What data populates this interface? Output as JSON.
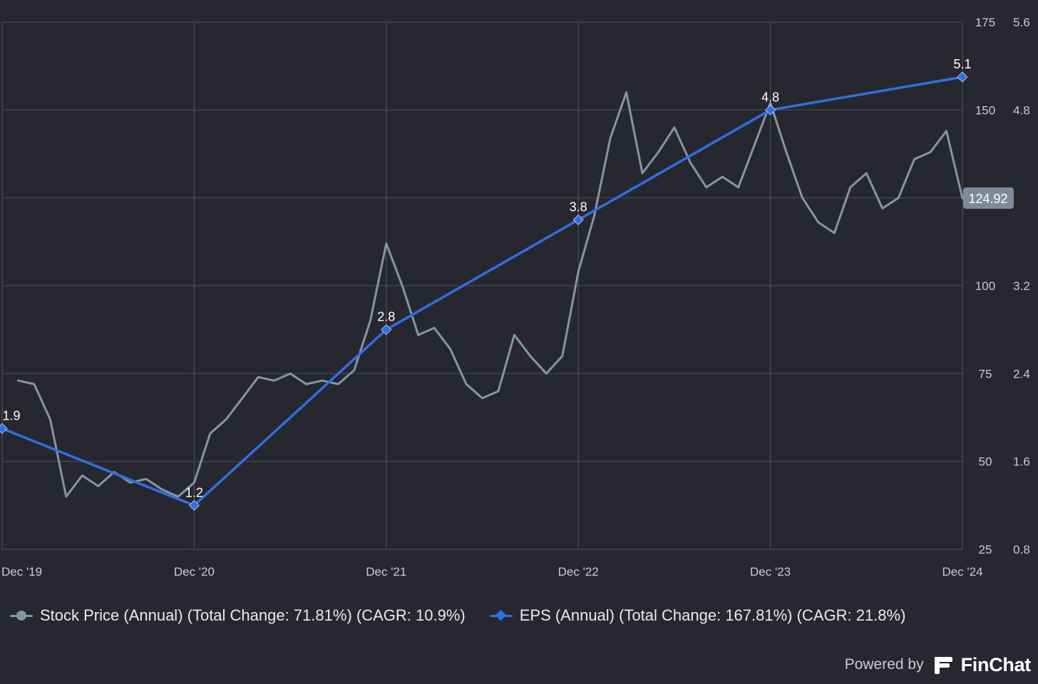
{
  "colors": {
    "background": "#272730",
    "grid": "#4a4c55",
    "axis_text": "#c9ccd2",
    "stock_series": "#8596a3",
    "eps_series": "#2f6fe0",
    "price_tag_bg": "#7d8b98"
  },
  "chart_data": {
    "type": "line",
    "x_axis": {
      "range": [
        "2019-12-01",
        "2024-12-01"
      ],
      "tick_labels": [
        "Dec '19",
        "Dec '20",
        "Dec '21",
        "Dec '22",
        "Dec '23",
        "Dec '24"
      ]
    },
    "y_axes": [
      {
        "series": "Stock Price (Annual)",
        "range": [
          25,
          175
        ],
        "ticks": [
          175,
          150,
          100,
          75,
          50,
          25
        ]
      },
      {
        "series": "EPS (Annual)",
        "range": [
          0.8,
          5.6
        ],
        "ticks": [
          "5.6",
          "4.8",
          "3.2",
          "2.4",
          "1.6",
          "0.8"
        ]
      }
    ],
    "grid": true,
    "legend_position": "bottom-left",
    "series": [
      {
        "name": "Stock Price (Annual)",
        "legend_label": "Stock Price (Annual) (Total Change: 71.81%) (CAGR: 10.9%)",
        "axis": "left",
        "color": "#8596a3",
        "last_value_label": "124.92",
        "x": [
          "2020-01",
          "2020-02",
          "2020-03",
          "2020-04",
          "2020-05",
          "2020-06",
          "2020-07",
          "2020-08",
          "2020-09",
          "2020-10",
          "2020-11",
          "2020-12",
          "2021-01",
          "2021-02",
          "2021-03",
          "2021-04",
          "2021-05",
          "2021-06",
          "2021-07",
          "2021-08",
          "2021-09",
          "2021-10",
          "2021-11",
          "2021-12",
          "2022-01",
          "2022-02",
          "2022-03",
          "2022-04",
          "2022-05",
          "2022-06",
          "2022-07",
          "2022-08",
          "2022-09",
          "2022-10",
          "2022-11",
          "2022-12",
          "2023-01",
          "2023-02",
          "2023-03",
          "2023-04",
          "2023-05",
          "2023-06",
          "2023-07",
          "2023-08",
          "2023-09",
          "2023-10",
          "2023-11",
          "2023-12",
          "2024-01",
          "2024-02",
          "2024-03",
          "2024-04",
          "2024-05",
          "2024-06",
          "2024-07",
          "2024-08",
          "2024-09",
          "2024-10",
          "2024-11",
          "2024-12"
        ],
        "values": [
          73,
          72,
          62,
          40,
          46,
          43,
          47,
          44,
          45,
          42,
          40,
          44,
          58,
          62,
          68,
          74,
          73,
          75,
          72,
          73,
          72,
          76,
          90,
          112,
          100,
          86,
          88,
          82,
          72,
          68,
          70,
          86,
          80,
          75,
          80,
          104,
          120,
          142,
          155,
          132,
          138,
          145,
          135,
          128,
          131,
          128,
          140,
          152,
          138,
          125,
          118,
          115,
          128,
          132,
          122,
          125,
          136,
          138,
          144,
          124.92
        ]
      },
      {
        "name": "EPS (Annual)",
        "legend_label": "EPS (Annual) (Total Change: 167.81%) (CAGR: 21.8%)",
        "axis": "right",
        "color": "#2f6fe0",
        "marker": "diamond",
        "x": [
          "2019-12",
          "2020-12",
          "2021-12",
          "2022-12",
          "2023-12",
          "2024-12"
        ],
        "values": [
          1.9,
          1.2,
          2.8,
          3.8,
          4.8,
          5.1
        ],
        "data_labels": [
          "1.9",
          "1.2",
          "2.8",
          "3.8",
          "4.8",
          "5.1"
        ]
      }
    ]
  },
  "legend": {
    "stock_label": "Stock Price (Annual) (Total Change: 71.81%) (CAGR: 10.9%)",
    "eps_label": "EPS (Annual) (Total Change: 167.81%) (CAGR: 21.8%)"
  },
  "branding": {
    "prefix": "Powered by",
    "name": "FinChat",
    "logo_icon": "finchat-logo-icon"
  }
}
